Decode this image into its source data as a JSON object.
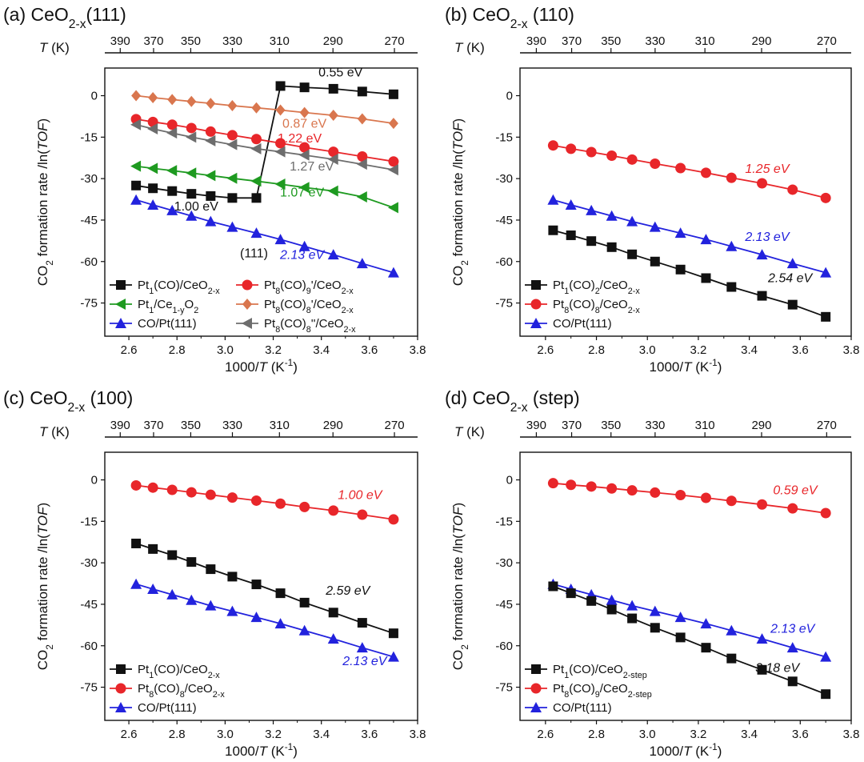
{
  "figure": {
    "xlabel": "1000/T (K⁻¹)",
    "ylabel": "CO₂ formation rate /ln(TOF)",
    "top_axis_label": "T (K)",
    "xticks": [
      "2.6",
      "2.8",
      "3.0",
      "3.2",
      "3.4",
      "3.6",
      "3.8"
    ],
    "yticks": [
      "0",
      "-15",
      "-30",
      "-45",
      "-60",
      "-75"
    ],
    "top_ticks": [
      "390",
      "370",
      "350",
      "330",
      "310",
      "290",
      "270"
    ]
  },
  "colors": {
    "black": "#111111",
    "red": "#e8262a",
    "green": "#1e9a20",
    "blue": "#2222dd",
    "orange": "#d9764e",
    "gray": "#6d6d6d"
  },
  "chart_data": [
    {
      "id": "a",
      "type": "line",
      "title": "(a) CeO2-x(111)",
      "xlim": [
        2.5,
        3.8
      ],
      "ylim": [
        -87,
        10
      ],
      "series": [
        {
          "name": "Pt1(CO)/CeO2-x",
          "color": "black",
          "marker": "square",
          "x": [
            2.63,
            2.7,
            2.78,
            2.86,
            2.94,
            3.03,
            3.13,
            3.23,
            3.33,
            3.45,
            3.57,
            3.7
          ],
          "y": [
            -32.5,
            -33.5,
            -34.5,
            -35.5,
            -36.3,
            -37.0,
            -37.0,
            3.5,
            3.0,
            2.5,
            1.5,
            0.5
          ]
        },
        {
          "name": "Pt8(CO)9'/CeO2-x",
          "color": "red",
          "marker": "circle",
          "x": [
            2.63,
            2.7,
            2.78,
            2.86,
            2.94,
            3.03,
            3.13,
            3.23,
            3.33,
            3.45,
            3.57,
            3.7
          ],
          "y": [
            -8.5,
            -9.5,
            -10.5,
            -11.7,
            -13.0,
            -14.3,
            -15.7,
            -17.2,
            -18.7,
            -20.3,
            -22.0,
            -23.8
          ]
        },
        {
          "name": "Pt1/Ce1-yO2",
          "color": "green",
          "marker": "triangle-left",
          "x": [
            2.63,
            2.7,
            2.78,
            2.86,
            2.94,
            3.03,
            3.13,
            3.23,
            3.33,
            3.45,
            3.57,
            3.7
          ],
          "y": [
            -25.5,
            -26.3,
            -27.1,
            -28.0,
            -28.9,
            -29.9,
            -30.9,
            -32.0,
            -33.2,
            -34.5,
            -36.6,
            -40.5
          ]
        },
        {
          "name": "Pt8(CO)8'/CeO2-x",
          "color": "orange",
          "marker": "diamond",
          "x": [
            2.63,
            2.7,
            2.78,
            2.86,
            2.94,
            3.03,
            3.13,
            3.23,
            3.33,
            3.45,
            3.57,
            3.7
          ],
          "y": [
            0.0,
            -0.7,
            -1.4,
            -2.1,
            -2.8,
            -3.6,
            -4.4,
            -5.2,
            -6.1,
            -7.1,
            -8.4,
            -10.0
          ]
        },
        {
          "name": "CO/Pt(111)",
          "color": "blue",
          "marker": "triangle-up",
          "x": [
            2.63,
            2.7,
            2.78,
            2.86,
            2.94,
            3.03,
            3.13,
            3.23,
            3.33,
            3.45,
            3.57,
            3.7
          ],
          "y": [
            -37.7,
            -39.5,
            -41.5,
            -43.5,
            -45.5,
            -47.5,
            -49.7,
            -52.0,
            -54.5,
            -57.5,
            -60.7,
            -64.0
          ]
        },
        {
          "name": "Pt8(CO)8''/CeO2-x",
          "color": "gray",
          "marker": "triangle-left",
          "x": [
            2.63,
            2.7,
            2.78,
            2.86,
            2.94,
            3.03,
            3.13,
            3.23,
            3.33,
            3.45,
            3.57,
            3.7
          ],
          "y": [
            -10.5,
            -12.0,
            -13.5,
            -15.0,
            -16.3,
            -17.7,
            -19.2,
            -20.3,
            -21.5,
            -23.0,
            -24.8,
            -26.8
          ]
        }
      ],
      "annotations": [
        {
          "text": "0.55 eV",
          "color": "black",
          "x": 3.48,
          "y": 7.0
        },
        {
          "text": "0.87 eV",
          "color": "orange",
          "x": 3.33,
          "y": -11.5
        },
        {
          "text": "1.22 eV",
          "color": "red",
          "x": 3.31,
          "y": -17.0
        },
        {
          "text": "1.27 eV",
          "color": "gray",
          "x": 3.36,
          "y": -27.0
        },
        {
          "text": "1.07 eV",
          "color": "green",
          "x": 3.32,
          "y": -36.5
        },
        {
          "text": "1.00 eV",
          "color": "black",
          "x": 2.88,
          "y": -41.5
        },
        {
          "text": "(111)",
          "color": "black",
          "x": 3.12,
          "y": -58.5
        },
        {
          "text": "2.13 eV",
          "color": "blue",
          "x": 3.32,
          "y": -59.0
        }
      ],
      "legend": {
        "position": "bottom-left",
        "columns": [
          [
            {
              "label": "Pt1(CO)/CeO2-x",
              "color": "black",
              "marker": "square"
            },
            {
              "label": "Pt1/Ce1-yO2",
              "color": "green",
              "marker": "triangle-left"
            },
            {
              "label": "CO/Pt(111)",
              "color": "blue",
              "marker": "triangle-up"
            }
          ],
          [
            {
              "label": "Pt8(CO)9'/CeO2-x",
              "color": "red",
              "marker": "circle"
            },
            {
              "label": "Pt8(CO)8'/CeO2-x",
              "color": "orange",
              "marker": "diamond"
            },
            {
              "label": "Pt8(CO)8''/CeO2-x",
              "color": "gray",
              "marker": "triangle-left"
            }
          ]
        ]
      }
    },
    {
      "id": "b",
      "type": "line",
      "title": "(b) CeO2-x (110)",
      "xlim": [
        2.5,
        3.8
      ],
      "ylim": [
        -87,
        10
      ],
      "series": [
        {
          "name": "Pt8(CO)8/CeO2-x",
          "color": "red",
          "marker": "circle",
          "x": [
            2.63,
            2.7,
            2.78,
            2.86,
            2.94,
            3.03,
            3.13,
            3.23,
            3.33,
            3.45,
            3.57,
            3.7
          ],
          "y": [
            -18.0,
            -19.2,
            -20.4,
            -21.7,
            -23.1,
            -24.6,
            -26.2,
            -27.9,
            -29.7,
            -31.7,
            -34.0,
            -37.0
          ]
        },
        {
          "name": "CO/Pt(111)",
          "color": "blue",
          "marker": "triangle-up",
          "x": [
            2.63,
            2.7,
            2.78,
            2.86,
            2.94,
            3.03,
            3.13,
            3.23,
            3.33,
            3.45,
            3.57,
            3.7
          ],
          "y": [
            -37.7,
            -39.5,
            -41.5,
            -43.5,
            -45.5,
            -47.5,
            -49.7,
            -52.0,
            -54.5,
            -57.5,
            -60.7,
            -64.0
          ]
        },
        {
          "name": "Pt1(CO)2/CeO2-x",
          "color": "black",
          "marker": "square",
          "x": [
            2.63,
            2.7,
            2.78,
            2.86,
            2.94,
            3.03,
            3.13,
            3.23,
            3.33,
            3.45,
            3.57,
            3.7
          ],
          "y": [
            -48.7,
            -50.5,
            -52.6,
            -54.8,
            -57.4,
            -60.0,
            -62.9,
            -66.0,
            -69.2,
            -72.4,
            -75.6,
            -80.0
          ]
        }
      ],
      "annotations": [
        {
          "text": "1.25 eV",
          "color": "red",
          "x": 3.47,
          "y": -28.0
        },
        {
          "text": "2.13 eV",
          "color": "blue",
          "x": 3.47,
          "y": -52.5
        },
        {
          "text": "2.54 eV",
          "color": "black",
          "x": 3.56,
          "y": -67.5
        }
      ],
      "legend": {
        "position": "bottom-left",
        "columns": [
          [
            {
              "label": "Pt1(CO)2/CeO2-x",
              "color": "black",
              "marker": "square"
            },
            {
              "label": "Pt8(CO)8/CeO2-x",
              "color": "red",
              "marker": "circle"
            },
            {
              "label": "CO/Pt(111)",
              "color": "blue",
              "marker": "triangle-up"
            }
          ]
        ]
      }
    },
    {
      "id": "c",
      "type": "line",
      "title": "(c) CeO2-x (100)",
      "xlim": [
        2.5,
        3.8
      ],
      "ylim": [
        -87,
        10
      ],
      "series": [
        {
          "name": "Pt8(CO)8/CeO2-x",
          "color": "red",
          "marker": "circle",
          "x": [
            2.63,
            2.7,
            2.78,
            2.86,
            2.94,
            3.03,
            3.13,
            3.23,
            3.33,
            3.45,
            3.57,
            3.7
          ],
          "y": [
            -2.0,
            -2.8,
            -3.6,
            -4.5,
            -5.4,
            -6.4,
            -7.5,
            -8.6,
            -9.8,
            -11.1,
            -12.6,
            -14.3
          ]
        },
        {
          "name": "Pt1(CO)/CeO2-x",
          "color": "black",
          "marker": "square",
          "x": [
            2.63,
            2.7,
            2.78,
            2.86,
            2.94,
            3.03,
            3.13,
            3.23,
            3.33,
            3.45,
            3.57,
            3.7
          ],
          "y": [
            -23.0,
            -25.0,
            -27.2,
            -29.7,
            -32.3,
            -35.0,
            -37.8,
            -41.0,
            -44.4,
            -48.0,
            -51.7,
            -55.5
          ]
        },
        {
          "name": "CO/Pt(111)",
          "color": "blue",
          "marker": "triangle-up",
          "x": [
            2.63,
            2.7,
            2.78,
            2.86,
            2.94,
            3.03,
            3.13,
            3.23,
            3.33,
            3.45,
            3.57,
            3.7
          ],
          "y": [
            -37.7,
            -39.5,
            -41.5,
            -43.5,
            -45.5,
            -47.5,
            -49.7,
            -52.0,
            -54.5,
            -57.5,
            -60.7,
            -64.0
          ]
        }
      ],
      "annotations": [
        {
          "text": "1.00 eV",
          "color": "red",
          "x": 3.56,
          "y": -7.0
        },
        {
          "text": "2.59 eV",
          "color": "black",
          "x": 3.51,
          "y": -41.5
        },
        {
          "text": "2.13 eV",
          "color": "blue",
          "x": 3.58,
          "y": -67.0
        }
      ],
      "legend": {
        "position": "bottom-left",
        "columns": [
          [
            {
              "label": "Pt1(CO)/CeO2-x",
              "color": "black",
              "marker": "square"
            },
            {
              "label": "Pt8(CO)8/CeO2-x",
              "color": "red",
              "marker": "circle"
            },
            {
              "label": "CO/Pt(111)",
              "color": "blue",
              "marker": "triangle-up"
            }
          ]
        ]
      }
    },
    {
      "id": "d",
      "type": "line",
      "title": "(d) CeO2-x (step)",
      "xlim": [
        2.5,
        3.8
      ],
      "ylim": [
        -87,
        10
      ],
      "series": [
        {
          "name": "Pt8(CO)9/CeO2-step",
          "color": "red",
          "marker": "circle",
          "x": [
            2.63,
            2.7,
            2.78,
            2.86,
            2.94,
            3.03,
            3.13,
            3.23,
            3.33,
            3.45,
            3.57,
            3.7
          ],
          "y": [
            -1.2,
            -1.8,
            -2.4,
            -3.1,
            -3.8,
            -4.6,
            -5.5,
            -6.5,
            -7.6,
            -8.9,
            -10.3,
            -12.0
          ]
        },
        {
          "name": "CO/Pt(111)",
          "color": "blue",
          "marker": "triangle-up",
          "x": [
            2.63,
            2.7,
            2.78,
            2.86,
            2.94,
            3.03,
            3.13,
            3.23,
            3.33,
            3.45,
            3.57,
            3.7
          ],
          "y": [
            -37.7,
            -39.5,
            -41.5,
            -43.5,
            -45.5,
            -47.5,
            -49.7,
            -52.0,
            -54.5,
            -57.5,
            -60.7,
            -64.0
          ]
        },
        {
          "name": "Pt1(CO)/CeO2-step",
          "color": "black",
          "marker": "square",
          "x": [
            2.63,
            2.7,
            2.78,
            2.86,
            2.94,
            3.03,
            3.13,
            3.23,
            3.33,
            3.45,
            3.57,
            3.7
          ],
          "y": [
            -38.5,
            -41.0,
            -43.8,
            -46.9,
            -50.1,
            -53.5,
            -57.0,
            -60.7,
            -64.6,
            -68.7,
            -72.9,
            -77.5
          ]
        }
      ],
      "annotations": [
        {
          "text": "0.59 eV",
          "color": "red",
          "x": 3.58,
          "y": -5.2
        },
        {
          "text": "2.13 eV",
          "color": "blue",
          "x": 3.57,
          "y": -55.3
        },
        {
          "text": "3.18 eV",
          "color": "black",
          "x": 3.51,
          "y": -69.5
        }
      ],
      "legend": {
        "position": "bottom-left",
        "columns": [
          [
            {
              "label": "Pt1(CO)/CeO2-step",
              "color": "black",
              "marker": "square"
            },
            {
              "label": "Pt8(CO)9/CeO2-step",
              "color": "red",
              "marker": "circle"
            },
            {
              "label": "CO/Pt(111)",
              "color": "blue",
              "marker": "triangle-up"
            }
          ]
        ]
      }
    }
  ]
}
